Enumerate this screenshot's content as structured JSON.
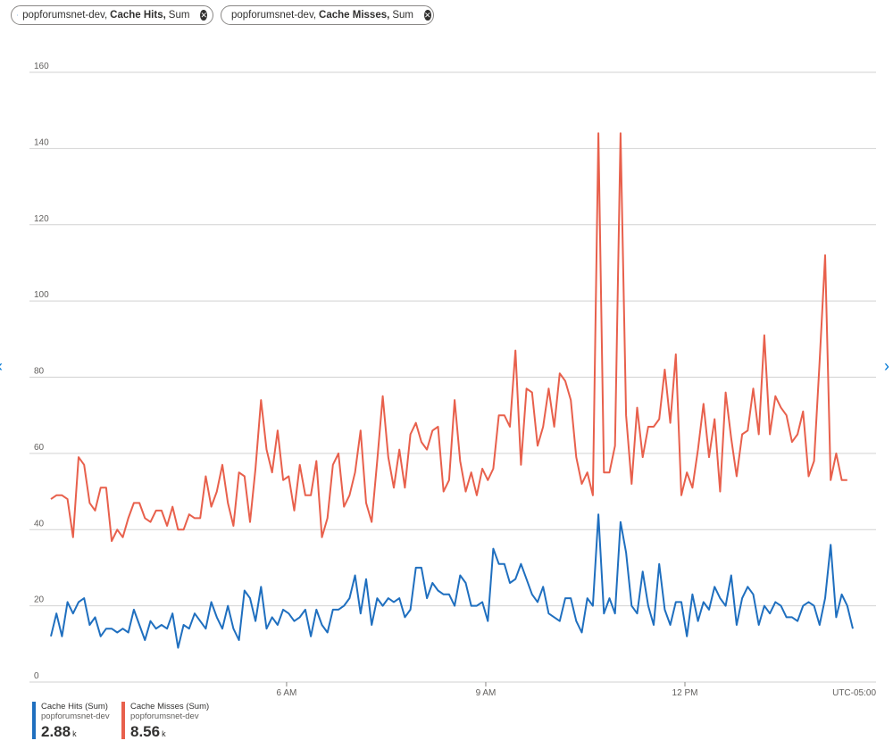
{
  "pills": [
    {
      "resource": "popforumsnet-dev,",
      "metric": "Cache Hits,",
      "aggregation": "Sum"
    },
    {
      "resource": "popforumsnet-dev,",
      "metric": "Cache Misses,",
      "aggregation": "Sum"
    }
  ],
  "colors": {
    "hits": "#1f6fbf",
    "misses": "#e8604c",
    "grid": "#d2d2d2",
    "axis_text": "#605e5c"
  },
  "timezone": "UTC-05:00",
  "legend": [
    {
      "name": "Cache Hits (Sum)",
      "resource": "popforumsnet-dev",
      "value": "2.88",
      "unit": "k",
      "color": "#1f6fbf"
    },
    {
      "name": "Cache Misses (Sum)",
      "resource": "popforumsnet-dev",
      "value": "8.56",
      "unit": "k",
      "color": "#e8604c"
    }
  ],
  "chart_data": {
    "type": "line",
    "ylim": [
      0,
      160
    ],
    "yticks": [
      0,
      20,
      40,
      60,
      80,
      100,
      120,
      140,
      160
    ],
    "xticks": [
      {
        "label": "6 AM",
        "hour": 6
      },
      {
        "label": "9 AM",
        "hour": 9
      },
      {
        "label": "12 PM",
        "hour": 12
      }
    ],
    "x_start_hour": 2.45,
    "x_step_hours": 0.0833,
    "grid": true,
    "series": [
      {
        "name": "Cache Hits (Sum)",
        "color": "#1f6fbf",
        "values": [
          12,
          18,
          12,
          21,
          18,
          21,
          22,
          15,
          17,
          12,
          14,
          14,
          13,
          14,
          13,
          19,
          15,
          11,
          16,
          14,
          15,
          14,
          18,
          9,
          15,
          14,
          18,
          16,
          14,
          21,
          17,
          14,
          20,
          14,
          11,
          24,
          22,
          16,
          25,
          14,
          17,
          15,
          19,
          18,
          16,
          17,
          19,
          12,
          19,
          15,
          13,
          19,
          19,
          20,
          22,
          28,
          18,
          27,
          15,
          22,
          20,
          22,
          21,
          22,
          17,
          19,
          30,
          30,
          22,
          26,
          24,
          23,
          23,
          20,
          28,
          26,
          20,
          20,
          21,
          16,
          35,
          31,
          31,
          26,
          27,
          31,
          27,
          23,
          21,
          25,
          18,
          17,
          16,
          22,
          22,
          16,
          13,
          22,
          20,
          44,
          18,
          22,
          18,
          42,
          34,
          20,
          18,
          29,
          20,
          15,
          31,
          19,
          15,
          21,
          21,
          12,
          23,
          16,
          21,
          19,
          25,
          22,
          20,
          28,
          15,
          22,
          25,
          23,
          15,
          20,
          18,
          21,
          20,
          17,
          17,
          16,
          20,
          21,
          20,
          15,
          22,
          36,
          17,
          23,
          20,
          14
        ]
      },
      {
        "name": "Cache Misses (Sum)",
        "color": "#e8604c",
        "values": [
          48,
          49,
          49,
          48,
          38,
          59,
          57,
          47,
          45,
          51,
          51,
          37,
          40,
          38,
          43,
          47,
          47,
          43,
          42,
          45,
          45,
          41,
          46,
          40,
          40,
          44,
          43,
          43,
          54,
          46,
          50,
          57,
          47,
          41,
          55,
          54,
          42,
          56,
          74,
          61,
          55,
          66,
          53,
          54,
          45,
          57,
          49,
          49,
          58,
          38,
          43,
          57,
          60,
          46,
          49,
          55,
          66,
          47,
          42,
          58,
          75,
          59,
          51,
          61,
          51,
          65,
          68,
          63,
          61,
          66,
          67,
          50,
          53,
          74,
          58,
          50,
          55,
          49,
          56,
          53,
          56,
          70,
          70,
          67,
          87,
          57,
          77,
          76,
          62,
          67,
          77,
          67,
          81,
          79,
          74,
          59,
          52,
          55,
          49,
          144,
          55,
          55,
          62,
          144,
          70,
          52,
          72,
          59,
          67,
          67,
          69,
          82,
          68,
          86,
          49,
          55,
          51,
          61,
          73,
          59,
          69,
          50,
          76,
          64,
          54,
          65,
          66,
          77,
          65,
          91,
          65,
          75,
          72,
          70,
          63,
          65,
          71,
          54,
          58,
          84,
          112,
          53,
          60,
          53,
          53
        ]
      }
    ]
  }
}
